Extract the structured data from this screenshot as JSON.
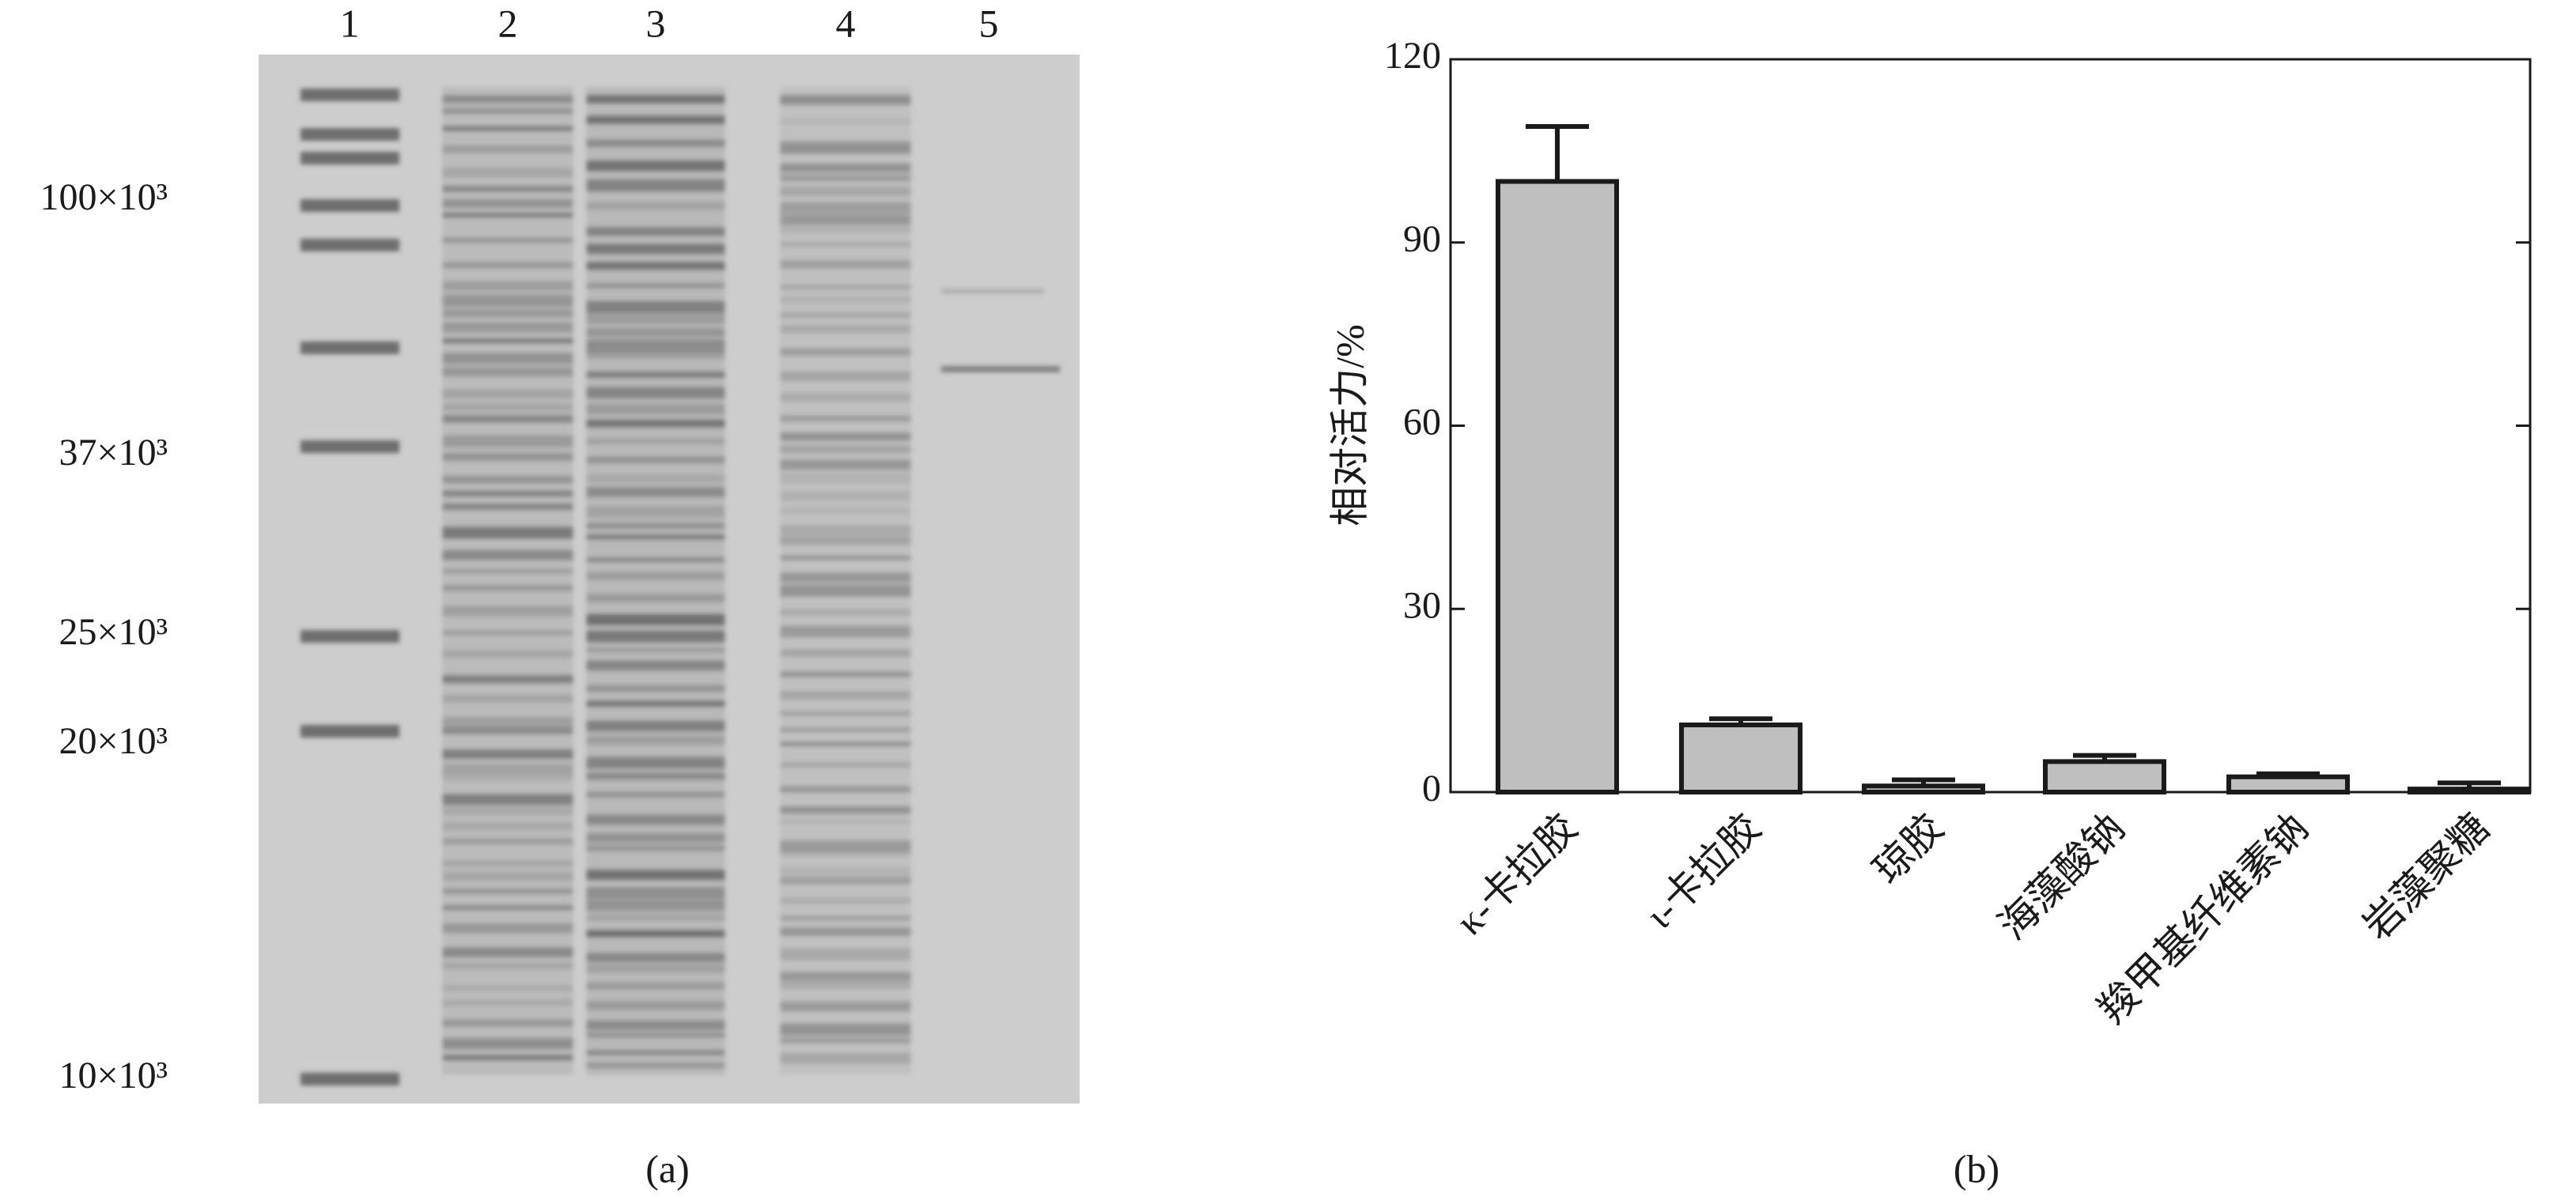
{
  "gel": {
    "lane_labels": [
      "1",
      "2",
      "3",
      "4",
      "5"
    ],
    "marker_labels": [
      "100×10³",
      "37×10³",
      "25×10³",
      "20×10³",
      "10×10³"
    ],
    "panel_label": "(a)"
  },
  "chart_data": {
    "type": "bar",
    "panel_label": "(b)",
    "y_label": "相对活力/%",
    "categories": [
      "κ-卡拉胶",
      "ι-卡拉胶",
      "琼胶",
      "海藻酸钠",
      "羧甲基纤维素钠",
      "岩藻聚糖"
    ],
    "values": [
      100,
      11,
      1,
      5,
      2.5,
      0.5
    ],
    "errors": [
      9,
      1,
      1,
      1,
      0.5,
      1
    ],
    "color": "#bfbfbf",
    "ylim": [
      0,
      120
    ],
    "yticks": [
      0,
      30,
      60,
      90,
      120
    ]
  }
}
